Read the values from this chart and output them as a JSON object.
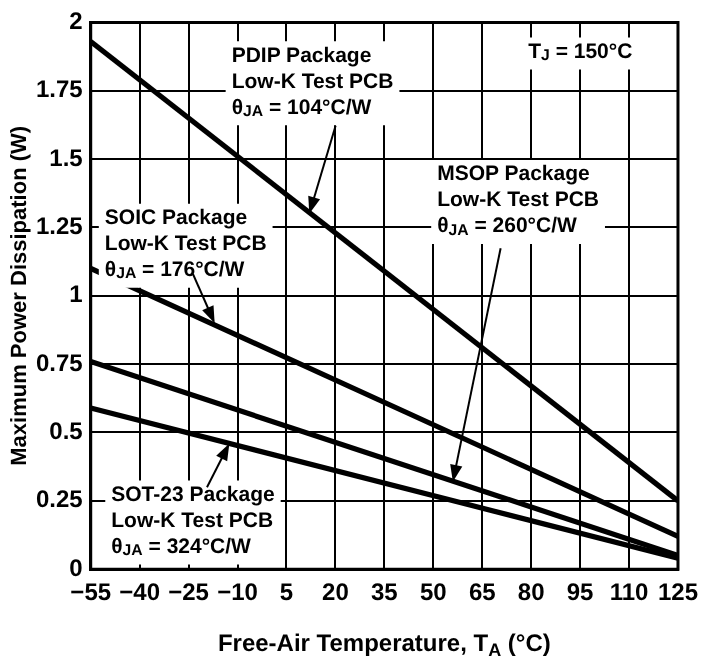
{
  "chart_data": {
    "type": "line",
    "xlabel": "Free-Air Temperature, T$_{A}$ (°C)",
    "ylabel": "Maximum Power Dissipation (W)",
    "x": [
      -55,
      125
    ],
    "series": [
      {
        "color": "#000000",
        "values": [
          1.93,
          0.25
        ]
      },
      {
        "color": "#000000",
        "values": [
          1.1,
          0.12
        ]
      },
      {
        "color": "#000000",
        "values": [
          0.76,
          0.05
        ]
      },
      {
        "color": "#000000",
        "values": [
          0.59,
          0.04
        ]
      }
    ],
    "xlim": [
      -55,
      125
    ],
    "xticks": [
      {
        "value": -55,
        "label": "−55"
      },
      {
        "value": -40,
        "label": "−40"
      },
      {
        "value": -25,
        "label": "−25"
      },
      {
        "value": -10,
        "label": "−10"
      },
      5,
      20,
      35,
      50,
      65,
      80,
      95,
      110,
      125
    ],
    "ylim": [
      0,
      2
    ],
    "yticks": [
      0,
      0.25,
      0.5,
      0.75,
      1,
      1.25,
      1.5,
      1.75,
      2
    ],
    "grid": true,
    "legend": false,
    "marker": "none",
    "line_style": "solid",
    "annotations": [
      {
        "text": "PDIP Package\nLow-K Test PCB\nθ$_{JA}$ = 104°C/W",
        "x": 12,
        "y": 1.3
      },
      {
        "text": "SOIC Package\nLow-K Test PCB\nθ$_{JA}$ = 176°C/W",
        "x": -17,
        "y": 0.9
      },
      {
        "text": "MSOP Package\nLow-K Test PCB\nθ$_{JA}$ = 260°C/W",
        "x": 56,
        "y": 0.32
      },
      {
        "text": "SOT-23 Package\nLow-K Test PCB\nθ$_{JA}$ = 324°C/W",
        "x": -12.5,
        "y": 0.46
      },
      "T$_{J}$ = 150°C"
    ]
  }
}
